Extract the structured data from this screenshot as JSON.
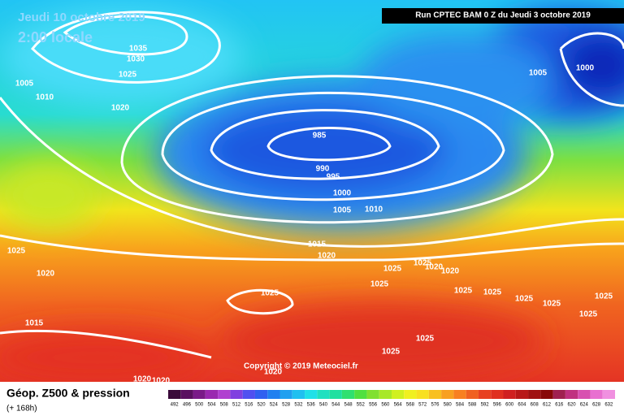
{
  "header": {
    "date": "Jeudi 10 octobre 2019",
    "time": "2:00 locale",
    "run": "Run CPTEC BAM 0 Z du Jeudi 3 octobre 2019"
  },
  "copyright": "Copyright © 2019 Meteociel.fr",
  "legend": {
    "title": "Géop. Z500 & pression",
    "lead": "(+ 168h)",
    "values": [
      492,
      496,
      500,
      504,
      508,
      512,
      516,
      520,
      524,
      528,
      532,
      536,
      540,
      544,
      548,
      552,
      556,
      560,
      564,
      568,
      572,
      576,
      580,
      584,
      588,
      592,
      596,
      600,
      604,
      608,
      612,
      616,
      620,
      624,
      628,
      632
    ]
  },
  "isobar_labels": [
    1035,
    1030,
    1025,
    1005,
    1010,
    1020,
    1005,
    1000,
    985,
    990,
    995,
    1000,
    1005,
    1010,
    1015,
    1020,
    1025,
    1020,
    1025,
    1025,
    1020,
    1020,
    1025,
    1025,
    1025,
    1025,
    1025,
    1025,
    1025,
    1025,
    1015,
    1025,
    1025,
    1020,
    1020,
    1020
  ]
}
